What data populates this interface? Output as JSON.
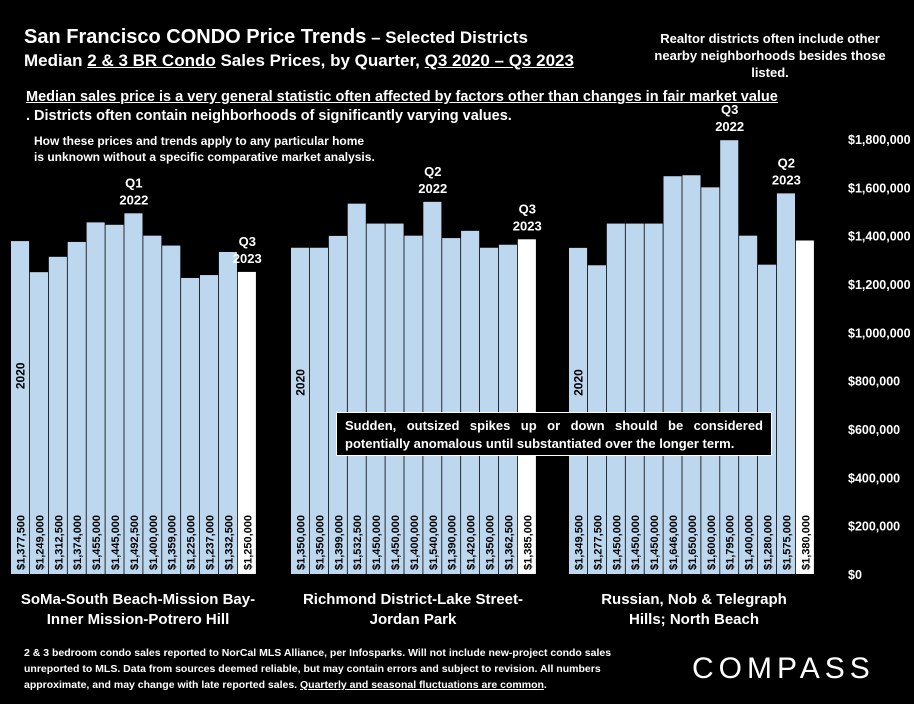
{
  "header": {
    "title_main": "San Francisco CONDO Price Trends",
    "title_sub": " – Selected Districts",
    "subtitle_pre": "Median ",
    "subtitle_u1": "2 & 3 BR Condo",
    "subtitle_mid": " Sales Prices, by Quarter, ",
    "subtitle_u2": "Q3 2020 – Q3 2023",
    "note_top_right": "Realtor districts often include other nearby neighborhoods besides those listed."
  },
  "notes": {
    "warning_underlined": "Median sales price is a very general statistic often affected by factors other than changes in fair market value",
    "warning_rest": ". Districts often contain neighborhoods of significantly varying values.",
    "how_line1": "How these prices and trends apply to any particular home",
    "how_line2": "is unknown without a specific comparative market analysis.",
    "callout": "Sudden, outsized spikes up or down should be considered potentially anomalous until substantiated over the longer term."
  },
  "footer": {
    "text": "2 & 3 bedroom condo sales reported to NorCal MLS Alliance, per Infosparks. Will not include new-project condo sales unreported to MLS. Data from sources deemed reliable, but may contain errors and subject to revision. All numbers approximate, and may change with late reported sales. ",
    "text_underlined": "Quarterly and seasonal fluctuations are common",
    "text_end": ".",
    "logo": "COMPASS"
  },
  "chart_data": {
    "type": "bar",
    "ylim": [
      0,
      1800000
    ],
    "yticks": [
      "$0",
      "$200,000",
      "$400,000",
      "$600,000",
      "$800,000",
      "$1,000,000",
      "$1,200,000",
      "$1,400,000",
      "$1,600,000",
      "$1,800,000"
    ],
    "colors": {
      "bar": "#bdd7ee",
      "latest": "#ffffff",
      "background": "#000000"
    },
    "groups": [
      {
        "name": "SoMa-South Beach-Mission Bay-Inner Mission-Potrero Hill",
        "label_line1": "SoMa-South Beach-Mission Bay-",
        "label_line2": "Inner Mission-Potrero Hill",
        "start_label": "2020",
        "values": [
          1377500,
          1249000,
          1312500,
          1374000,
          1455000,
          1445000,
          1492500,
          1400000,
          1359000,
          1225000,
          1237000,
          1332500,
          1250000
        ],
        "value_labels": [
          "$1,377,500",
          "$1,249,000",
          "$1,312,500",
          "$1,374,000",
          "$1,455,000",
          "$1,445,000",
          "$1,492,500",
          "$1,400,000",
          "$1,359,000",
          "$1,225,000",
          "$1,237,000",
          "$1,332,500",
          "$1,250,000"
        ],
        "annotations": [
          {
            "index": 6,
            "line1": "Q1",
            "line2": "2022"
          },
          {
            "index": 12,
            "line1": "Q3",
            "line2": "2023"
          }
        ]
      },
      {
        "name": "Richmond District-Lake Street-Jordan Park",
        "label_line1": "Richmond District-Lake Street-",
        "label_line2": "Jordan Park",
        "start_label": "2020",
        "values": [
          1350000,
          1350000,
          1399000,
          1532500,
          1450000,
          1450000,
          1400000,
          1540000,
          1390000,
          1420000,
          1350000,
          1362500,
          1385000
        ],
        "value_labels": [
          "$1,350,000",
          "$1,350,000",
          "$1,399,000",
          "$1,532,500",
          "$1,450,000",
          "$1,450,000",
          "$1,400,000",
          "$1,540,000",
          "$1,390,000",
          "$1,420,000",
          "$1,350,000",
          "$1,362,500",
          "$1,385,000"
        ],
        "annotations": [
          {
            "index": 7,
            "line1": "Q2",
            "line2": "2022"
          },
          {
            "index": 12,
            "line1": "Q3",
            "line2": "2023"
          }
        ]
      },
      {
        "name": "Russian, Nob & Telegraph Hills; North Beach",
        "label_line1": "Russian, Nob & Telegraph",
        "label_line2": "Hills; North Beach",
        "start_label": "2020",
        "values": [
          1349500,
          1277500,
          1450000,
          1450000,
          1450000,
          1646000,
          1650000,
          1600000,
          1795000,
          1400000,
          1280000,
          1575000,
          1380000
        ],
        "value_labels": [
          "$1,349,500",
          "$1,277,500",
          "$1,450,000",
          "$1,450,000",
          "$1,450,000",
          "$1,646,000",
          "$1,650,000",
          "$1,600,000",
          "$1,795,000",
          "$1,400,000",
          "$1,280,000",
          "$1,575,000",
          "$1,380,000"
        ],
        "annotations": [
          {
            "index": 8,
            "line1": "Q3",
            "line2": "2022"
          },
          {
            "index": 11,
            "line1": "Q2",
            "line2": "2023"
          }
        ]
      }
    ]
  }
}
